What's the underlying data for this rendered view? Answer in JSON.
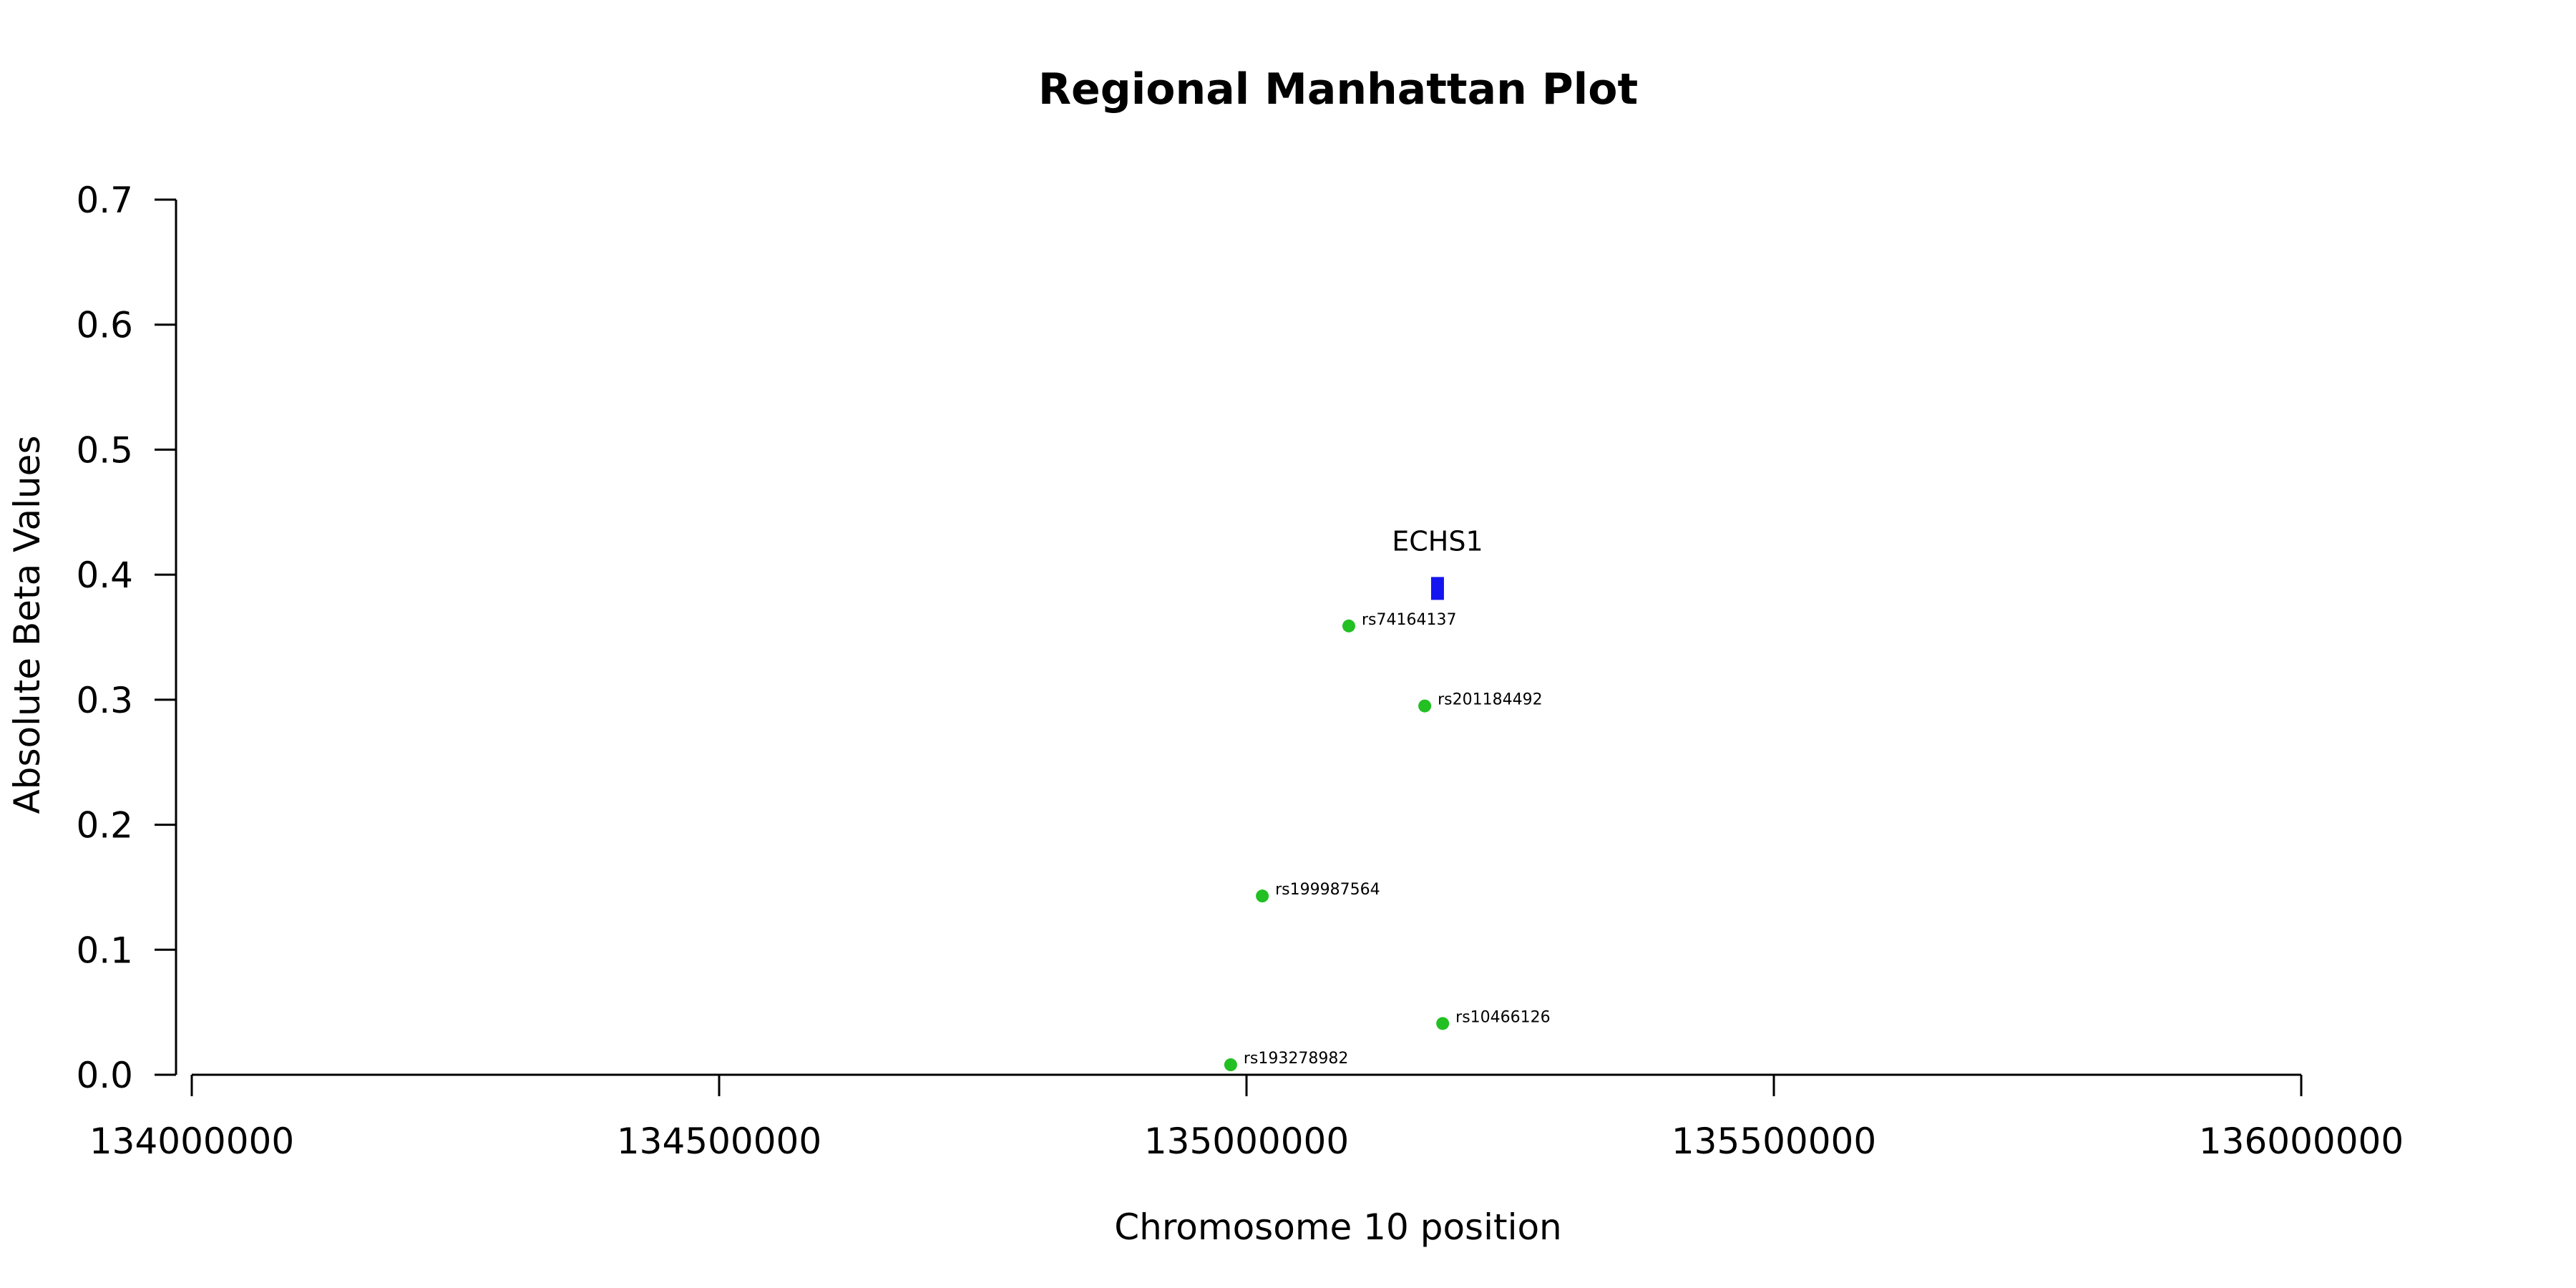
{
  "chart_data": {
    "type": "scatter",
    "title": "Regional Manhattan Plot",
    "xlabel": "Chromosome 10 position",
    "ylabel": "Absolute Beta Values",
    "xlim": [
      134000000,
      136000000
    ],
    "ylim": [
      0.0,
      0.7
    ],
    "xticks": [
      134000000,
      134500000,
      135000000,
      135500000,
      136000000
    ],
    "xtick_labels": [
      "134000000",
      "134500000",
      "135000000",
      "135500000",
      "136000000"
    ],
    "yticks": [
      0.0,
      0.1,
      0.2,
      0.3,
      0.4,
      0.5,
      0.6,
      0.7
    ],
    "ytick_labels": [
      "0.0",
      "0.1",
      "0.2",
      "0.3",
      "0.4",
      "0.5",
      "0.6",
      "0.7"
    ],
    "grid": false,
    "point_color": "#22c022",
    "gene_color": "#1414f0",
    "points": [
      {
        "x": 135097000,
        "y": 0.359,
        "label": "rs74164137"
      },
      {
        "x": 135169000,
        "y": 0.295,
        "label": "rs201184492"
      },
      {
        "x": 135015000,
        "y": 0.143,
        "label": "rs199987564"
      },
      {
        "x": 135186000,
        "y": 0.041,
        "label": "rs10466126"
      },
      {
        "x": 134985000,
        "y": 0.008,
        "label": "rs193278982"
      }
    ],
    "genes": [
      {
        "name": "ECHS1",
        "start": 135175000,
        "end": 135187000,
        "y": 0.389
      }
    ]
  }
}
